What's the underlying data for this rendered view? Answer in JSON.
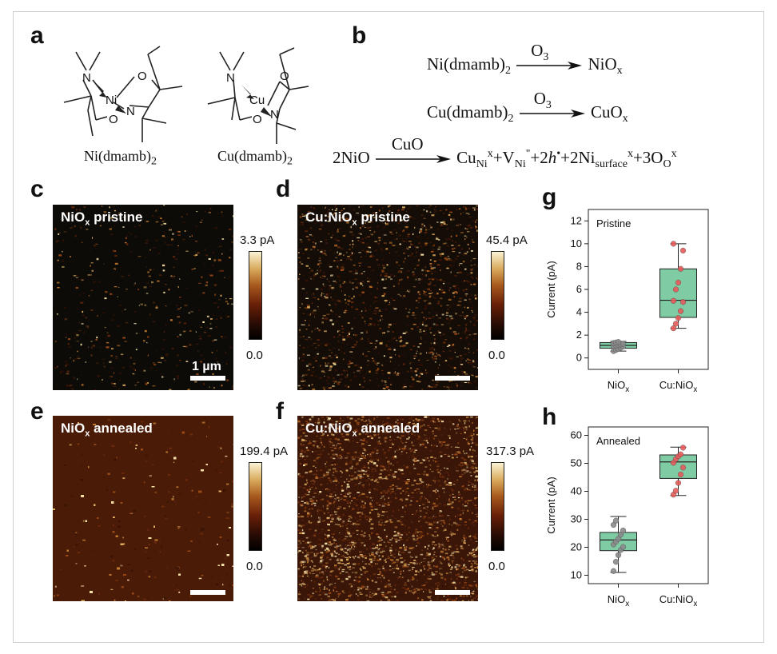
{
  "panels": {
    "a": "a",
    "b": "b",
    "c": "c",
    "d": "d",
    "e": "e",
    "f": "f",
    "g": "g",
    "h": "h"
  },
  "molecules": {
    "ni_name": "Ni(dmamb)",
    "ni_sub": "2",
    "cu_name": "Cu(dmamb)",
    "cu_sub": "2",
    "atoms": {
      "N": "N",
      "O": "O",
      "Ni": "Ni",
      "Cu": "Cu"
    }
  },
  "reactions": {
    "r1": {
      "left": "Ni(dmamb)",
      "left_sub": "2",
      "over": "O",
      "over_sub": "3",
      "right": "NiO",
      "right_sub": "x"
    },
    "r2": {
      "left": "Cu(dmamb)",
      "left_sub": "2",
      "over": "O",
      "over_sub": "3",
      "right": "CuO",
      "right_sub": "x"
    },
    "r3": {
      "left": "2NiO",
      "over": "CuO",
      "t1": "Cu",
      "t1_sub": "Ni",
      "t1_sup": "x",
      "t2": "+V",
      "t2_sub": "Ni",
      "t2_sup": "\"",
      "t3": "+2",
      "t3_h": "h",
      "t3_sup": "•",
      "t4": "+2Ni",
      "t4_sub": "surface",
      "t4_sup": "x",
      "t5": "+3O",
      "t5_sub": "O",
      "t5_sup": "x"
    }
  },
  "afm": {
    "c": {
      "label_a": "NiO",
      "label_sub": "x",
      "label_b": " pristine",
      "cmax": "3.3 pA",
      "cmin": "0.0",
      "scalebar": "1 µm"
    },
    "d": {
      "label_a": "Cu:NiO",
      "label_sub": "x",
      "label_b": " pristine",
      "cmax": "45.4 pA",
      "cmin": "0.0"
    },
    "e": {
      "label_a": "NiO",
      "label_sub": "x",
      "label_b": " annealed",
      "cmax": "199.4 pA",
      "cmin": "0.0"
    },
    "f": {
      "label_a": "Cu:NiO",
      "label_sub": "x",
      "label_b": " annealed",
      "cmax": "317.3 pA",
      "cmin": "0.0"
    }
  },
  "colors": {
    "box_fill": "#7fcba3",
    "point_gray": "#8a8a8a",
    "point_red": "#e85a5a",
    "afm_dark": "#120a04",
    "afm_bright": "#f6e7b0"
  },
  "chart_data": [
    {
      "type": "box",
      "panel": "g",
      "annotation": "Pristine",
      "ylabel": "Current (pA)",
      "ylim": [
        -1,
        13
      ],
      "yticks": [
        0,
        2,
        4,
        6,
        8,
        10,
        12
      ],
      "categories": [
        {
          "name": "NiO",
          "sub": "x"
        },
        {
          "name": "Cu:NiO",
          "sub": "x"
        }
      ],
      "boxes": [
        {
          "min": 0.6,
          "q1": 0.85,
          "median": 1.1,
          "q3": 1.35,
          "max": 1.45,
          "points": [
            0.6,
            0.7,
            0.8,
            0.9,
            1.0,
            1.05,
            1.1,
            1.15,
            1.2,
            1.25,
            1.3,
            1.35,
            1.4
          ]
        },
        {
          "min": 2.6,
          "q1": 3.55,
          "median": 5.05,
          "q3": 7.8,
          "max": 10.0,
          "points": [
            2.6,
            3.0,
            3.5,
            4.1,
            4.9,
            5.0,
            6.0,
            6.6,
            7.8,
            9.4,
            10.0
          ]
        }
      ],
      "colors": [
        "#8a8a8a",
        "#e85a5a"
      ]
    },
    {
      "type": "box",
      "panel": "h",
      "annotation": "Annealed",
      "ylabel": "Current (pA)",
      "ylim": [
        7,
        63
      ],
      "yticks": [
        10,
        20,
        30,
        40,
        50,
        60
      ],
      "categories": [
        {
          "name": "NiO",
          "sub": "x"
        },
        {
          "name": "Cu:NiO",
          "sub": "x"
        }
      ],
      "boxes": [
        {
          "min": 11.0,
          "q1": 18.8,
          "median": 22.6,
          "q3": 25.3,
          "max": 31.0,
          "points": [
            11.5,
            14.8,
            17.2,
            19.0,
            20.1,
            21.0,
            22.0,
            23.0,
            24.5,
            26.0,
            28.0,
            29.5
          ]
        },
        {
          "min": 38.5,
          "q1": 44.6,
          "median": 50.5,
          "q3": 53.0,
          "max": 55.8,
          "points": [
            38.8,
            40.2,
            43.0,
            46.0,
            48.5,
            50.2,
            51.5,
            52.5,
            53.2,
            55.6
          ]
        }
      ],
      "colors": [
        "#8a8a8a",
        "#e85a5a"
      ]
    }
  ]
}
